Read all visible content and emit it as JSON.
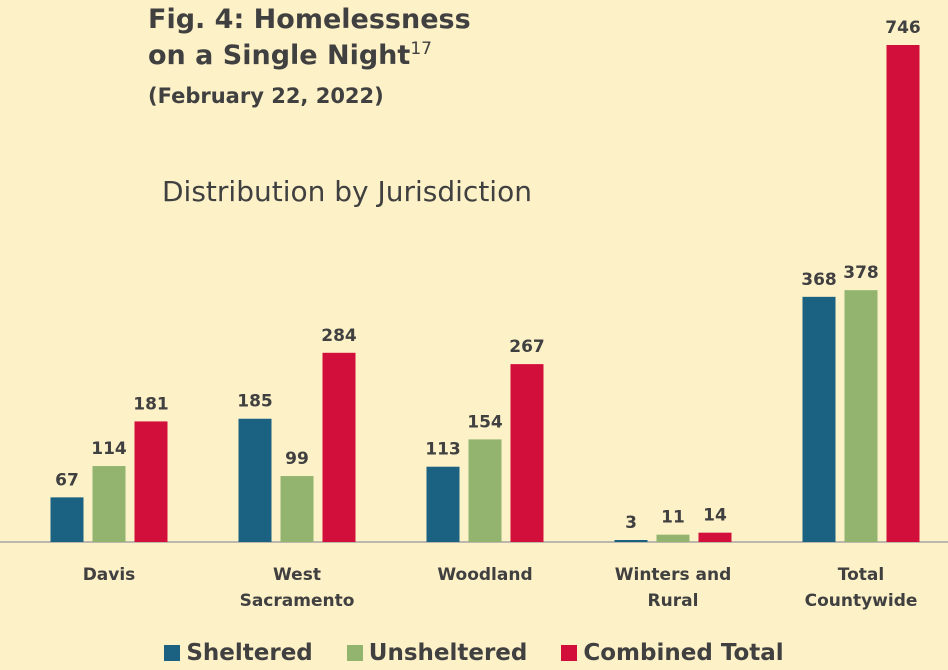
{
  "chart_data": {
    "type": "bar",
    "title": "Fig. 4: Homelessness on a Single Night",
    "title_note": "17",
    "date": "(February 22, 2022)",
    "subtitle": "Distribution by Jurisdiction",
    "categories": [
      "Davis",
      "West Sacramento",
      "Woodland",
      "Winters and Rural",
      "Total Countywide"
    ],
    "series": [
      {
        "name": "Sheltered",
        "color": "#1b6282",
        "values": [
          67,
          185,
          113,
          3,
          368
        ]
      },
      {
        "name": "Unsheltered",
        "color": "#93b46f",
        "values": [
          114,
          99,
          154,
          11,
          378
        ]
      },
      {
        "name": "Combined Total",
        "color": "#d20f3a",
        "values": [
          181,
          284,
          267,
          14,
          746
        ]
      }
    ],
    "legend": "bottom"
  }
}
